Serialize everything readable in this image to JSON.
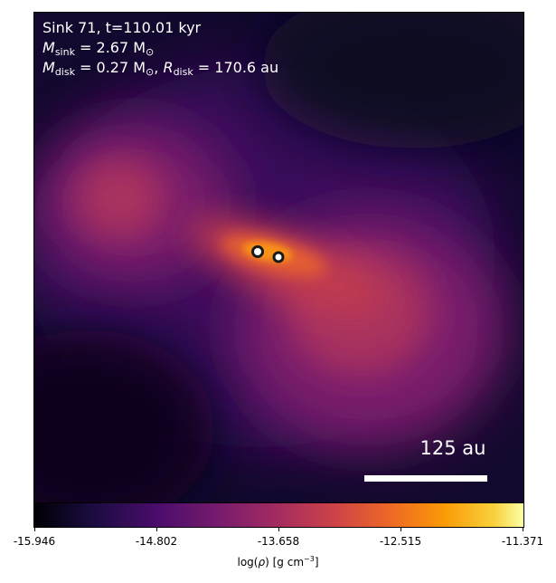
{
  "annotation": {
    "line1": "Sink 71, t=110.01 kyr",
    "msink_symbol": "M",
    "msink_sub": "sink",
    "msink_value": " = 2.67 M",
    "msink_unit_sub": "⊙",
    "mdisk_symbol": "M",
    "mdisk_sub": "disk",
    "mdisk_value": " = 0.27 M",
    "mdisk_unit_sub": "⊙",
    "rdisk_sep": ", ",
    "rdisk_symbol": "R",
    "rdisk_sub": "disk",
    "rdisk_value": " = 170.6 au"
  },
  "scale_bar": {
    "label": "125 au"
  },
  "colorbar": {
    "colormap": "inferno",
    "min": -15.946,
    "max": -11.371,
    "ticks": [
      "-15.946",
      "-14.802",
      "-13.658",
      "-12.515",
      "-11.371"
    ],
    "label_prefix": "log(",
    "label_rho": "ρ",
    "label_suffix": ") [g cm",
    "label_exp": "−3",
    "label_close": "]"
  },
  "colors": {
    "sink_fill": "#ffffff",
    "sink_edge": "#1a1a1a",
    "text": "#ffffff"
  }
}
